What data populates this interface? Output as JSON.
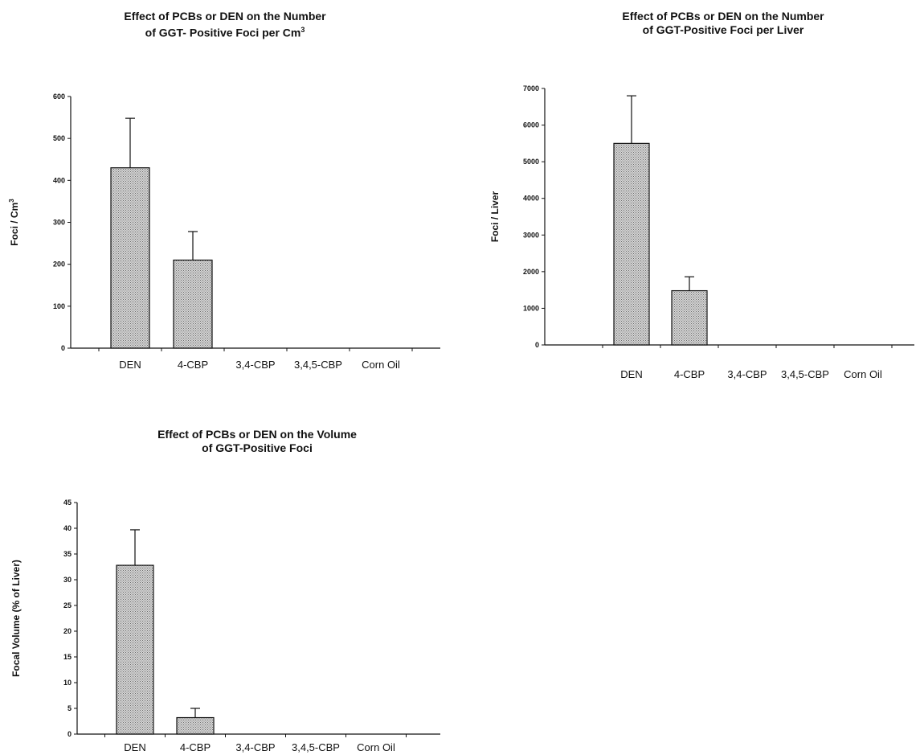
{
  "chart_data": [
    {
      "type": "bar",
      "title": [
        "Effect of  PCBs or DEN on the Number",
        "of  GGT- Positive Foci per Cm"
      ],
      "title_superscript": "3",
      "ylabel": "Foci / Cm",
      "ylabel_superscript": "3",
      "xlabel": "",
      "categories": [
        "DEN",
        "4-CBP",
        "3,4-CBP",
        "3,4,5-CBP",
        "Corn Oil"
      ],
      "values": [
        430,
        210,
        0,
        0,
        0
      ],
      "errors": [
        118,
        68,
        0,
        0,
        0
      ],
      "ylim": [
        0,
        600
      ],
      "yticks": [
        "0",
        "100",
        "200",
        "300",
        "400",
        "500",
        "600"
      ],
      "grid": false,
      "legend": "none"
    },
    {
      "type": "bar",
      "title": [
        "Effect  of  PCBs or  DEN  on the Number",
        "of  GGT-Positive Foci per Liver"
      ],
      "ylabel": "Foci / Liver",
      "xlabel": "",
      "categories": [
        "DEN",
        "4-CBP",
        "3,4-CBP",
        "3,4,5-CBP",
        "Corn Oil"
      ],
      "values": [
        5500,
        1480,
        0,
        0,
        0
      ],
      "errors": [
        1300,
        380,
        0,
        0,
        0
      ],
      "ylim": [
        0,
        7000
      ],
      "yticks": [
        "0",
        "1000",
        "2000",
        "3000",
        "4000",
        "5000",
        "6000",
        "7000"
      ],
      "grid": false,
      "legend": "none"
    },
    {
      "type": "bar",
      "title": [
        "Effect of PCBs or DEN on the Volume",
        "of GGT-Positive Foci"
      ],
      "ylabel": "Focal Volume (% of Liver)",
      "xlabel": "",
      "categories": [
        "DEN",
        "4-CBP",
        "3,4-CBP",
        "3,4,5-CBP",
        "Corn Oil"
      ],
      "values": [
        32.8,
        3.2,
        0,
        0,
        0
      ],
      "errors": [
        6.9,
        1.8,
        0,
        0,
        0
      ],
      "ylim": [
        0,
        45
      ],
      "yticks": [
        "0",
        "5",
        "10",
        "15",
        "20",
        "25",
        "30",
        "35",
        "40",
        "45"
      ],
      "grid": false,
      "legend": "none"
    }
  ],
  "colors": {
    "bar_fill": "#d4d4d4",
    "bar_texture": "#6a6a6a",
    "axis": "#111111"
  }
}
